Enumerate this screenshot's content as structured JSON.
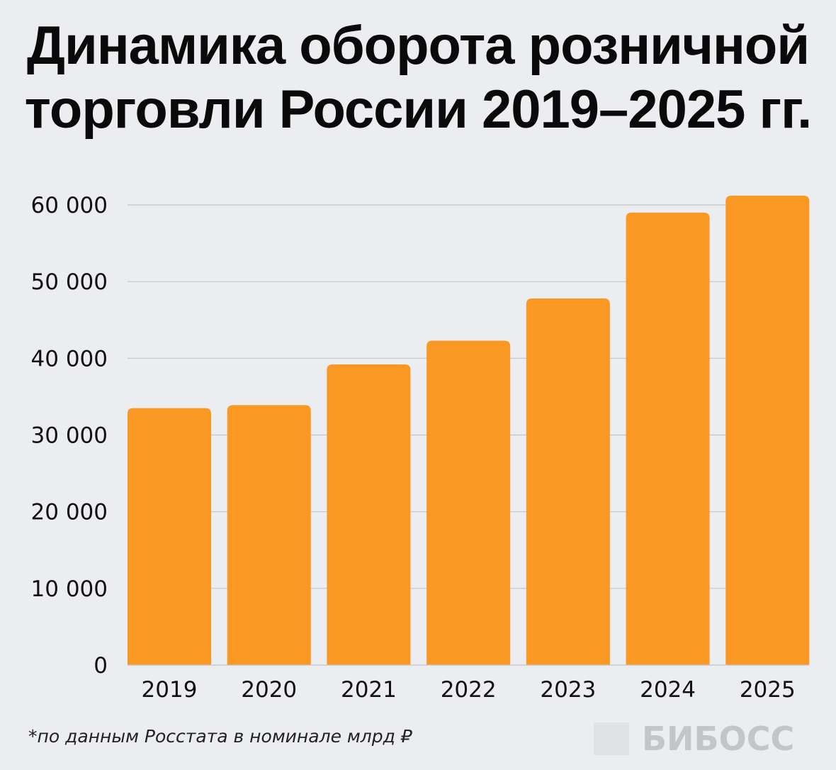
{
  "chart_data": {
    "type": "bar",
    "title": "Динамика оборота розничной торговли России 2019–2025 гг.",
    "categories": [
      "2019",
      "2020",
      "2021",
      "2022",
      "2023",
      "2024",
      "2025"
    ],
    "values": [
      33500,
      33900,
      39200,
      42300,
      47800,
      59000,
      61200
    ],
    "ylim": [
      0,
      60000
    ],
    "yticks": [
      0,
      10000,
      20000,
      30000,
      40000,
      50000,
      60000
    ],
    "ytick_labels": [
      "0",
      "10 000",
      "20 000",
      "30 000",
      "40 000",
      "50 000",
      "60 000"
    ],
    "grid": true,
    "bar_color": "#f99823",
    "footnote": "*по данным Росстата в номинале млрд ₽"
  },
  "logo": "БИБОСС"
}
